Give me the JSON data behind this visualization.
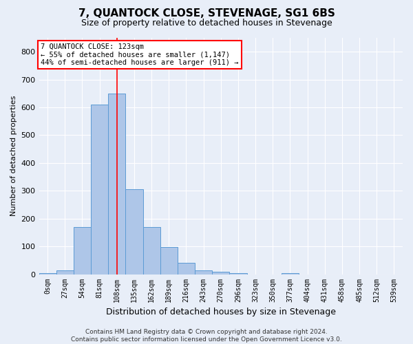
{
  "title": "7, QUANTOCK CLOSE, STEVENAGE, SG1 6BS",
  "subtitle": "Size of property relative to detached houses in Stevenage",
  "xlabel": "Distribution of detached houses by size in Stevenage",
  "ylabel": "Number of detached properties",
  "bar_labels": [
    "0sqm",
    "27sqm",
    "54sqm",
    "81sqm",
    "108sqm",
    "135sqm",
    "162sqm",
    "189sqm",
    "216sqm",
    "243sqm",
    "270sqm",
    "296sqm",
    "323sqm",
    "350sqm",
    "377sqm",
    "404sqm",
    "431sqm",
    "458sqm",
    "485sqm",
    "512sqm",
    "539sqm"
  ],
  "bar_heights": [
    5,
    14,
    170,
    610,
    650,
    305,
    170,
    98,
    40,
    14,
    8,
    4,
    0,
    0,
    5,
    0,
    0,
    0,
    0,
    0,
    0
  ],
  "bar_color": "#aec6e8",
  "bar_edge_color": "#5b9bd5",
  "vline_x": 4,
  "annotation_line1": "7 QUANTOCK CLOSE: 123sqm",
  "annotation_line2": "← 55% of detached houses are smaller (1,147)",
  "annotation_line3": "44% of semi-detached houses are larger (911) →",
  "box_color": "white",
  "box_edge_color": "red",
  "ylim": [
    0,
    850
  ],
  "yticks": [
    0,
    100,
    200,
    300,
    400,
    500,
    600,
    700,
    800
  ],
  "bg_color": "#e8eef8",
  "grid_color": "white",
  "footer_line1": "Contains HM Land Registry data © Crown copyright and database right 2024.",
  "footer_line2": "Contains public sector information licensed under the Open Government Licence v3.0."
}
